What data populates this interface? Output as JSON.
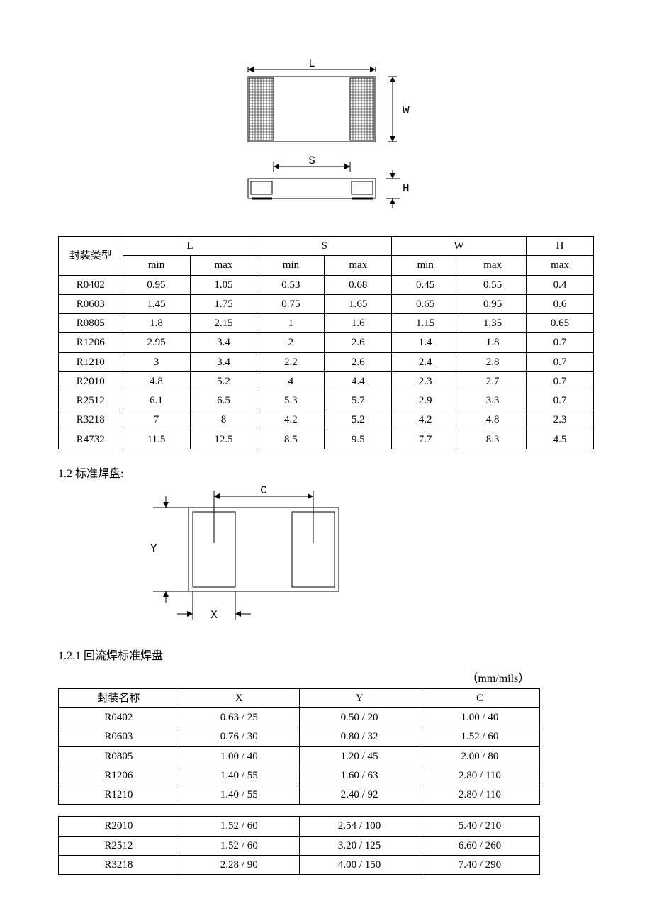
{
  "diagram1": {
    "L": "L",
    "W": "W",
    "S": "S",
    "H": "H",
    "stroke": "#000000",
    "hatch_stroke": "#000000"
  },
  "table1": {
    "headers": {
      "type": "封装类型",
      "L": "L",
      "S": "S",
      "W": "W",
      "H": "H",
      "min": "min",
      "max": "max"
    },
    "rows": [
      [
        "R0402",
        "0.95",
        "1.05",
        "0.53",
        "0.68",
        "0.45",
        "0.55",
        "0.4"
      ],
      [
        "R0603",
        "1.45",
        "1.75",
        "0.75",
        "1.65",
        "0.65",
        "0.95",
        "0.6"
      ],
      [
        "R0805",
        "1.8",
        "2.15",
        "1",
        "1.6",
        "1.15",
        "1.35",
        "0.65"
      ],
      [
        "R1206",
        "2.95",
        "3.4",
        "2",
        "2.6",
        "1.4",
        "1.8",
        "0.7"
      ],
      [
        "R1210",
        "3",
        "3.4",
        "2.2",
        "2.6",
        "2.4",
        "2.8",
        "0.7"
      ],
      [
        "R2010",
        "4.8",
        "5.2",
        "4",
        "4.4",
        "2.3",
        "2.7",
        "0.7"
      ],
      [
        "R2512",
        "6.1",
        "6.5",
        "5.3",
        "5.7",
        "2.9",
        "3.3",
        "0.7"
      ],
      [
        "R3218",
        "7",
        "8",
        "4.2",
        "5.2",
        "4.2",
        "4.8",
        "2.3"
      ],
      [
        "R4732",
        "11.5",
        "12.5",
        "8.5",
        "9.5",
        "7.7",
        "8.3",
        "4.5"
      ]
    ]
  },
  "section12": {
    "title": "1.2 标准焊盘:"
  },
  "diagram2": {
    "C": "C",
    "Y": "Y",
    "X": "X",
    "stroke": "#000000"
  },
  "section121": {
    "title": "1.2.1 回流焊标准焊盘",
    "unit": "（mm/mils）"
  },
  "table2": {
    "headers": {
      "name": "封装名称",
      "X": "X",
      "Y": "Y",
      "C": "C"
    },
    "rows_a": [
      [
        "R0402",
        "0.63 / 25",
        "0.50 / 20",
        "1.00 / 40"
      ],
      [
        "R0603",
        "0.76 / 30",
        "0.80 / 32",
        "1.52 / 60"
      ],
      [
        "R0805",
        "1.00 / 40",
        "1.20 / 45",
        "2.00 / 80"
      ],
      [
        "R1206",
        "1.40 / 55",
        "1.60 / 63",
        "2.80 / 110"
      ],
      [
        "R1210",
        "1.40 / 55",
        "2.40 / 92",
        "2.80 / 110"
      ]
    ],
    "rows_b": [
      [
        "R2010",
        "1.52 / 60",
        "2.54 / 100",
        "5.40 / 210"
      ],
      [
        "R2512",
        "1.52 / 60",
        "3.20 / 125",
        "6.60 / 260"
      ],
      [
        "R3218",
        "2.28 / 90",
        "4.00 / 150",
        "7.40 / 290"
      ]
    ]
  }
}
